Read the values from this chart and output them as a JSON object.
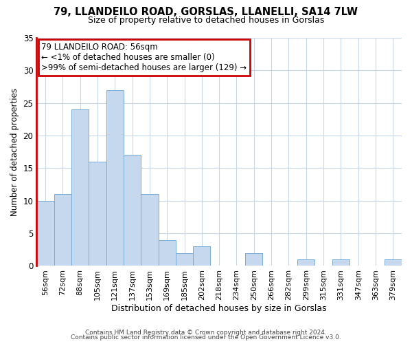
{
  "title": "79, LLANDEILO ROAD, GORSLAS, LLANELLI, SA14 7LW",
  "subtitle": "Size of property relative to detached houses in Gorslas",
  "xlabel": "Distribution of detached houses by size in Gorslas",
  "ylabel": "Number of detached properties",
  "bar_color": "#c5d8ee",
  "bar_edge_color": "#7aadd4",
  "bar_values": [
    10,
    11,
    24,
    16,
    27,
    17,
    11,
    4,
    2,
    3,
    0,
    0,
    2,
    0,
    0,
    1,
    0,
    1,
    0,
    0,
    1
  ],
  "x_labels": [
    "56sqm",
    "72sqm",
    "88sqm",
    "105sqm",
    "121sqm",
    "137sqm",
    "153sqm",
    "169sqm",
    "185sqm",
    "202sqm",
    "218sqm",
    "234sqm",
    "250sqm",
    "266sqm",
    "282sqm",
    "299sqm",
    "315sqm",
    "331sqm",
    "347sqm",
    "363sqm",
    "379sqm"
  ],
  "ylim": [
    0,
    35
  ],
  "yticks": [
    0,
    5,
    10,
    15,
    20,
    25,
    30,
    35
  ],
  "annotation_title": "79 LLANDEILO ROAD: 56sqm",
  "annotation_line1": "← <1% of detached houses are smaller (0)",
  "annotation_line2": ">99% of semi-detached houses are larger (129) →",
  "annotation_box_color": "#ffffff",
  "annotation_border_color": "#cc0000",
  "red_spine_color": "#cc0000",
  "background_color": "#ffffff",
  "grid_color": "#c8d8e8",
  "footer1": "Contains HM Land Registry data © Crown copyright and database right 2024.",
  "footer2": "Contains public sector information licensed under the Open Government Licence v3.0."
}
